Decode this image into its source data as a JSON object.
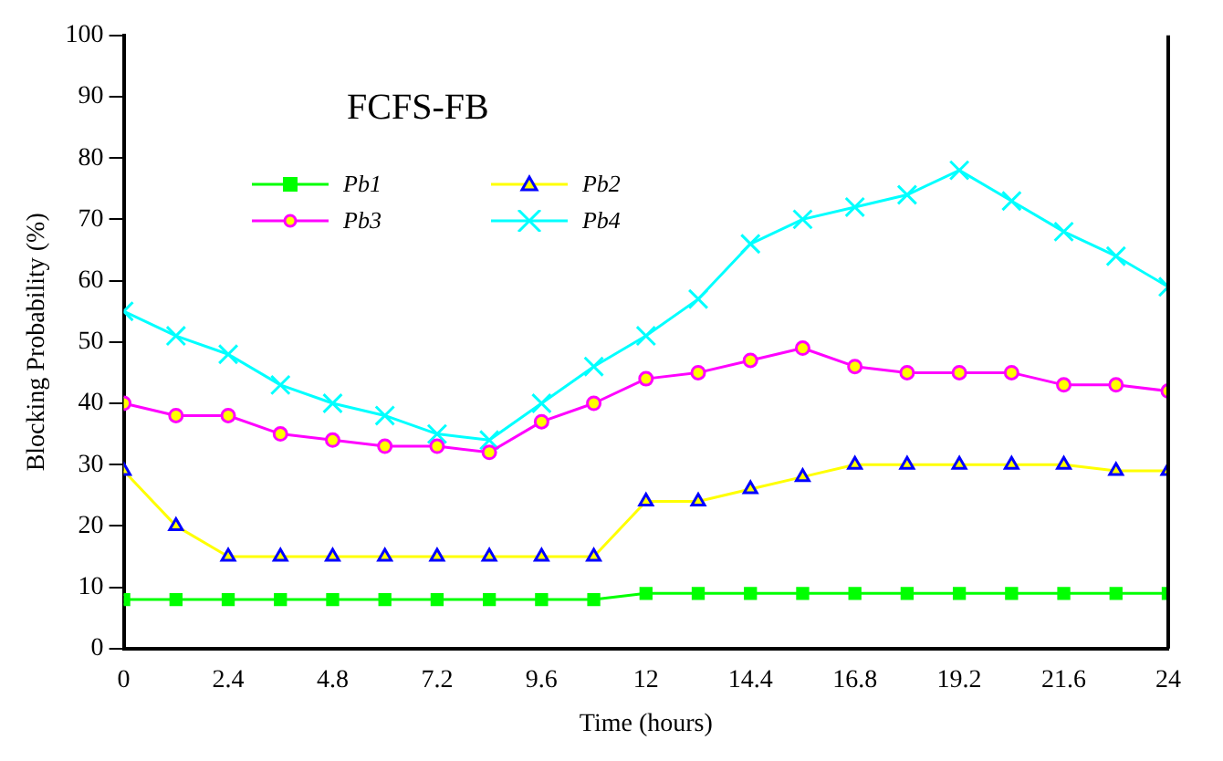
{
  "chart_data": {
    "type": "line",
    "title": "FCFS-FB",
    "xlabel": "Time (hours)",
    "ylabel": "Blocking Probability (%)",
    "x": [
      0,
      1.2,
      2.4,
      3.6,
      4.8,
      6,
      7.2,
      8.4,
      9.6,
      10.8,
      12,
      13.2,
      14.4,
      15.6,
      16.8,
      18,
      19.2,
      20.4,
      21.6,
      22.8,
      24
    ],
    "series": [
      {
        "name": "Pb1",
        "color": "#00ff00",
        "marker": "square",
        "values": [
          8,
          8,
          8,
          8,
          8,
          8,
          8,
          8,
          8,
          8,
          9,
          9,
          9,
          9,
          9,
          9,
          9,
          9,
          9,
          9,
          9
        ]
      },
      {
        "name": "Pb2",
        "color": "#ffff00",
        "marker": "triangle",
        "values": [
          29,
          20,
          15,
          15,
          15,
          15,
          15,
          15,
          15,
          15,
          24,
          24,
          26,
          28,
          30,
          30,
          30,
          30,
          30,
          29,
          29
        ]
      },
      {
        "name": "Pb3",
        "color": "#ff00ff",
        "marker": "circle",
        "values": [
          40,
          38,
          38,
          35,
          34,
          33,
          33,
          32,
          37,
          40,
          44,
          45,
          47,
          49,
          46,
          45,
          45,
          45,
          43,
          43,
          42
        ]
      },
      {
        "name": "Pb4",
        "color": "#00ffff",
        "marker": "cross",
        "values": [
          55,
          51,
          48,
          43,
          40,
          38,
          35,
          34,
          40,
          46,
          51,
          57,
          66,
          70,
          72,
          74,
          78,
          73,
          68,
          64,
          59
        ]
      }
    ],
    "xlim": [
      0,
      24
    ],
    "xticks": [
      0,
      2.4,
      4.8,
      7.2,
      9.6,
      12,
      14.4,
      16.8,
      19.2,
      21.6,
      24
    ],
    "ylim": [
      0,
      100
    ],
    "yticks": [
      0,
      10,
      20,
      30,
      40,
      50,
      60,
      70,
      80,
      90,
      100
    ],
    "grid": false,
    "legend": "top left",
    "line_style": "solid"
  }
}
